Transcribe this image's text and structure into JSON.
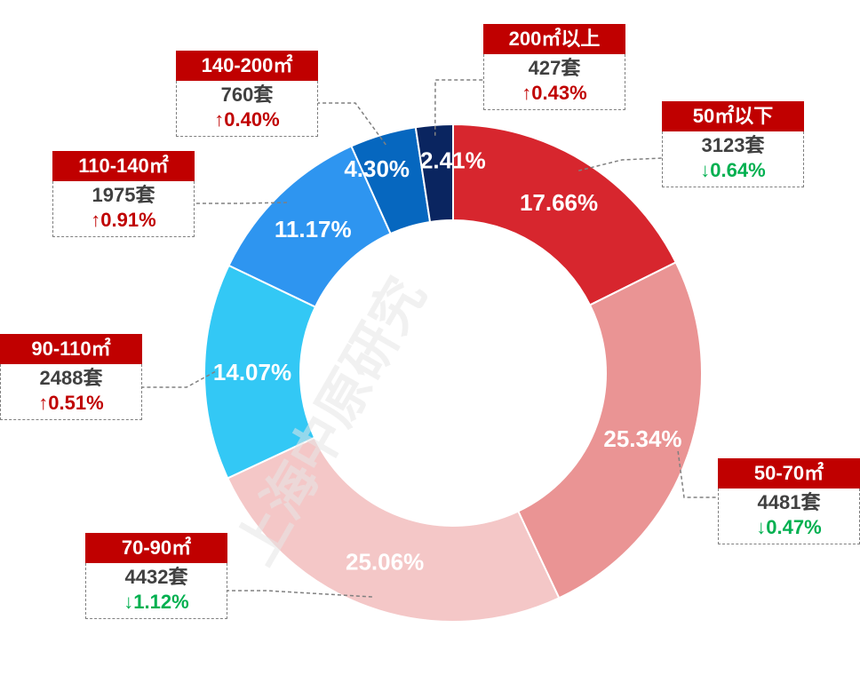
{
  "chart_data": {
    "type": "pie",
    "donut": true,
    "unit": "%",
    "slices": [
      {
        "label": "50㎡以下",
        "value": 17.66,
        "count": "3123套",
        "change": "↓0.64%",
        "direction": "down",
        "color": "#d7262e"
      },
      {
        "label": "50-70㎡",
        "value": 25.34,
        "count": "4481套",
        "change": "↓0.47%",
        "direction": "down",
        "color": "#ea9494"
      },
      {
        "label": "70-90㎡",
        "value": 25.06,
        "count": "4432套",
        "change": "↓1.12%",
        "direction": "down",
        "color": "#f4c7c7"
      },
      {
        "label": "90-110㎡",
        "value": 14.07,
        "count": "2488套",
        "change": "↑0.51%",
        "direction": "up",
        "color": "#33c8f5"
      },
      {
        "label": "110-140㎡",
        "value": 11.17,
        "count": "1975套",
        "change": "↑0.91%",
        "direction": "up",
        "color": "#2e95f0"
      },
      {
        "label": "140-200㎡",
        "value": 4.3,
        "count": "760套",
        "change": "↑0.40%",
        "direction": "up",
        "color": "#0667bf"
      },
      {
        "label": "200㎡以上",
        "value": 2.41,
        "count": "427套",
        "change": "↑0.43%",
        "direction": "up",
        "color": "#0a2560"
      }
    ],
    "slice_value_labels": [
      "17.66%",
      "25.34%",
      "25.06%",
      "14.07%",
      "11.17%",
      "4.30%",
      "2.41%"
    ],
    "slice_label_colors": [
      "#ffffff",
      "#ffffff",
      "#ffffff",
      "#ffffff",
      "#ffffff",
      "#ffffff",
      "#ffffff"
    ],
    "legend_placement": "callouts around ring"
  },
  "watermark": "上海中原研究"
}
